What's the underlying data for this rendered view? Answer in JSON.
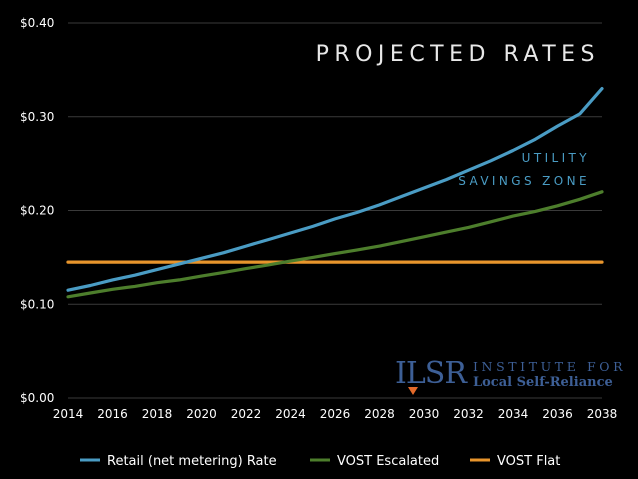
{
  "chart_data": {
    "type": "line",
    "title": "PROJECTED RATES",
    "annotation": [
      "UTILITY",
      "SAVINGS ZONE"
    ],
    "xlabel": "",
    "ylabel": "",
    "x": [
      2014,
      2015,
      2016,
      2017,
      2018,
      2019,
      2020,
      2021,
      2022,
      2023,
      2024,
      2025,
      2026,
      2027,
      2028,
      2029,
      2030,
      2031,
      2032,
      2033,
      2034,
      2035,
      2036,
      2037,
      2038
    ],
    "xticks": [
      "2014",
      "2016",
      "2018",
      "2020",
      "2022",
      "2024",
      "2026",
      "2028",
      "2030",
      "2032",
      "2034",
      "2036",
      "2038"
    ],
    "yticks": [
      {
        "value": 0.0,
        "label": "$0.00"
      },
      {
        "value": 0.1,
        "label": "$0.10"
      },
      {
        "value": 0.2,
        "label": "$0.20"
      },
      {
        "value": 0.3,
        "label": "$0.30"
      },
      {
        "value": 0.4,
        "label": "$0.40"
      }
    ],
    "xlim": [
      2014,
      2038
    ],
    "ylim": [
      0,
      0.4
    ],
    "grid": true,
    "legend_position": "bottom",
    "series": [
      {
        "name": "Retail (net metering) Rate",
        "color": "#4a9cc4",
        "values": [
          0.115,
          0.12,
          0.126,
          0.131,
          0.137,
          0.143,
          0.149,
          0.155,
          0.162,
          0.169,
          0.176,
          0.183,
          0.191,
          0.198,
          0.206,
          0.215,
          0.224,
          0.233,
          0.243,
          0.253,
          0.264,
          0.276,
          0.29,
          0.303,
          0.33
        ]
      },
      {
        "name": "VOST Escalated",
        "color": "#4d7e2c",
        "values": [
          0.108,
          0.112,
          0.116,
          0.119,
          0.123,
          0.126,
          0.13,
          0.134,
          0.138,
          0.142,
          0.146,
          0.15,
          0.154,
          0.158,
          0.162,
          0.167,
          0.172,
          0.177,
          0.182,
          0.188,
          0.194,
          0.199,
          0.205,
          0.212,
          0.22
        ]
      },
      {
        "name": "VOST Flat",
        "color": "#e8952c",
        "values": [
          0.145,
          0.145,
          0.145,
          0.145,
          0.145,
          0.145,
          0.145,
          0.145,
          0.145,
          0.145,
          0.145,
          0.145,
          0.145,
          0.145,
          0.145,
          0.145,
          0.145,
          0.145,
          0.145,
          0.145,
          0.145,
          0.145,
          0.145,
          0.145,
          0.145
        ]
      }
    ]
  },
  "logo": {
    "mark": "ILSR",
    "line1": "INSTITUTE FOR",
    "line2": "Local Self-Reliance"
  },
  "colors": {
    "background": "#000000",
    "grid": "#3a3a3a",
    "text": "#ffffff",
    "title": "#e8e8e8",
    "annotation": "#4a9cc4",
    "logo": "#3d5f96",
    "logo_accent": "#e36a2a"
  }
}
